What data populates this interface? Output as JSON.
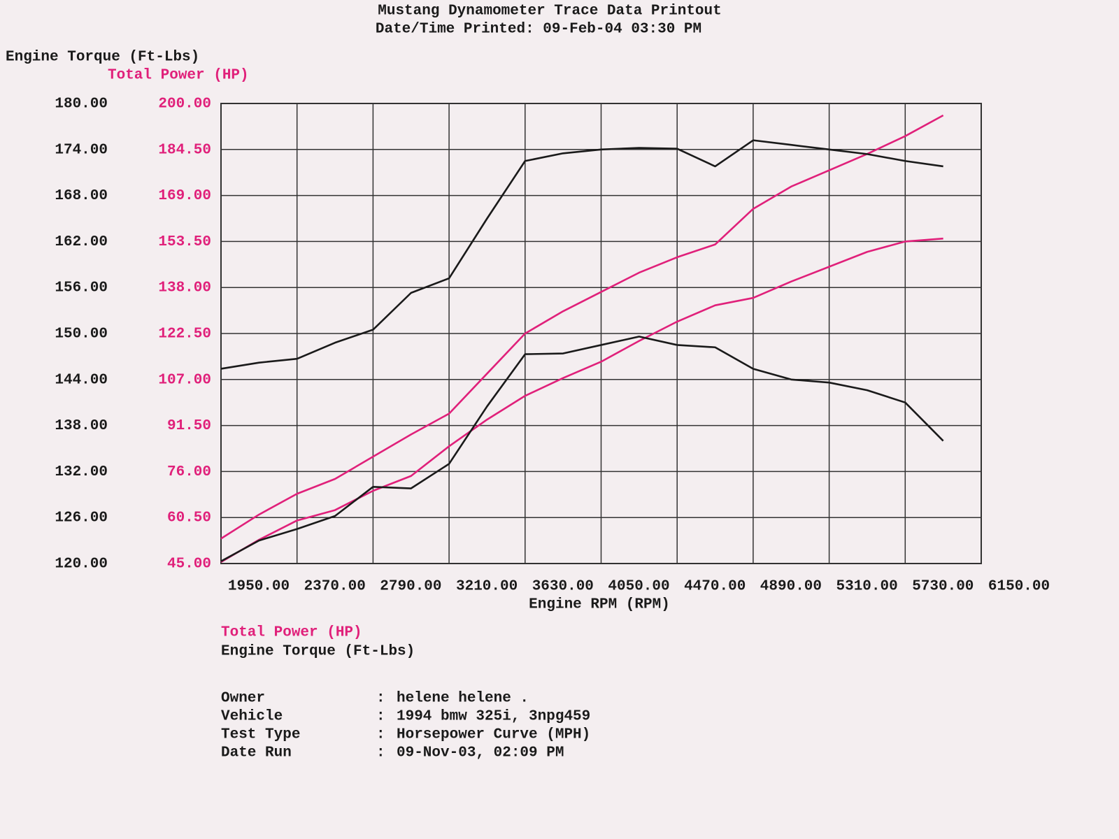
{
  "chart_data": {
    "type": "line",
    "title": "Mustang Dynamometer Trace Data Printout",
    "subtitle": "Date/Time Printed: 09-Feb-04 03:30 PM",
    "ylabel": "Engine Torque (Ft-Lbs)",
    "y2label": "Total Power (HP)",
    "xlabel": "Engine RPM (RPM)",
    "grid": true,
    "x": [
      1950,
      2160,
      2370,
      2580,
      2790,
      3000,
      3210,
      3420,
      3630,
      3840,
      4050,
      4260,
      4470,
      4680,
      4890,
      5100,
      5310,
      5520,
      5730,
      5940,
      6150
    ],
    "xlim": [
      1950,
      6150
    ],
    "xticks": [
      {
        "value": 1950,
        "label": "1950.00"
      },
      {
        "value": 2370,
        "label": "2370.00"
      },
      {
        "value": 2790,
        "label": "2790.00"
      },
      {
        "value": 3210,
        "label": "3210.00"
      },
      {
        "value": 3630,
        "label": "3630.00"
      },
      {
        "value": 4050,
        "label": "4050.00"
      },
      {
        "value": 4470,
        "label": "4470.00"
      },
      {
        "value": 4890,
        "label": "4890.00"
      },
      {
        "value": 5310,
        "label": "5310.00"
      },
      {
        "value": 5730,
        "label": "5730.00"
      },
      {
        "value": 6150,
        "label": "6150.00"
      }
    ],
    "ylim": [
      120,
      180
    ],
    "yticks": [
      {
        "value": 120,
        "label": "120.00"
      },
      {
        "value": 126,
        "label": "126.00"
      },
      {
        "value": 132,
        "label": "132.00"
      },
      {
        "value": 138,
        "label": "138.00"
      },
      {
        "value": 144,
        "label": "144.00"
      },
      {
        "value": 150,
        "label": "150.00"
      },
      {
        "value": 156,
        "label": "156.00"
      },
      {
        "value": 162,
        "label": "162.00"
      },
      {
        "value": 168,
        "label": "168.00"
      },
      {
        "value": 174,
        "label": "174.00"
      },
      {
        "value": 180,
        "label": "180.00"
      }
    ],
    "y2lim": [
      45,
      200
    ],
    "y2ticks": [
      {
        "value": 45,
        "label": "45.00"
      },
      {
        "value": 60.5,
        "label": "60.50"
      },
      {
        "value": 76,
        "label": "76.00"
      },
      {
        "value": 91.5,
        "label": "91.50"
      },
      {
        "value": 107,
        "label": "107.00"
      },
      {
        "value": 122.5,
        "label": "122.50"
      },
      {
        "value": 138,
        "label": "138.00"
      },
      {
        "value": 153.5,
        "label": "153.50"
      },
      {
        "value": 169,
        "label": "169.00"
      },
      {
        "value": 184.5,
        "label": "184.50"
      },
      {
        "value": 200,
        "label": "200.00"
      }
    ],
    "series": [
      {
        "name": "Total Power (HP)",
        "color": "#e0207a",
        "axis": "y2",
        "runs": [
          [
            53.4,
            61.5,
            68.5,
            73.5,
            81,
            88.5,
            95.5,
            109,
            122.5,
            130,
            136.5,
            143,
            148.2,
            152.5,
            164.5,
            172,
            177.5,
            183,
            189,
            196,
            null
          ],
          [
            45.5,
            53,
            59.5,
            63,
            69.5,
            74.5,
            84.5,
            93.5,
            101.5,
            107.5,
            113,
            120,
            126.5,
            132,
            134.5,
            140,
            145,
            150,
            153.5,
            154.5,
            null
          ]
        ]
      },
      {
        "name": "Engine Torque (Ft-Lbs)",
        "color": "#1a1a1a",
        "axis": "y",
        "runs": [
          [
            145.4,
            146.2,
            146.7,
            148.8,
            150.5,
            155.3,
            157.2,
            165,
            172.5,
            173.5,
            174,
            174.2,
            174.1,
            171.8,
            175.2,
            174.6,
            174,
            173.4,
            172.5,
            171.8,
            null
          ],
          [
            120.3,
            123,
            124.5,
            126.2,
            130,
            129.8,
            133,
            140.5,
            147.3,
            147.4,
            148.5,
            149.6,
            148.5,
            148.2,
            145.4,
            144,
            143.6,
            142.6,
            141,
            136,
            null
          ]
        ]
      }
    ],
    "info": [
      {
        "label": "Owner",
        "value": "helene helene ."
      },
      {
        "label": "Vehicle",
        "value": "1994 bmw 325i, 3npg459"
      },
      {
        "label": "Test Type",
        "value": "Horsepower Curve (MPH)"
      },
      {
        "label": "Date Run",
        "value": "09-Nov-03, 02:09 PM"
      }
    ]
  }
}
